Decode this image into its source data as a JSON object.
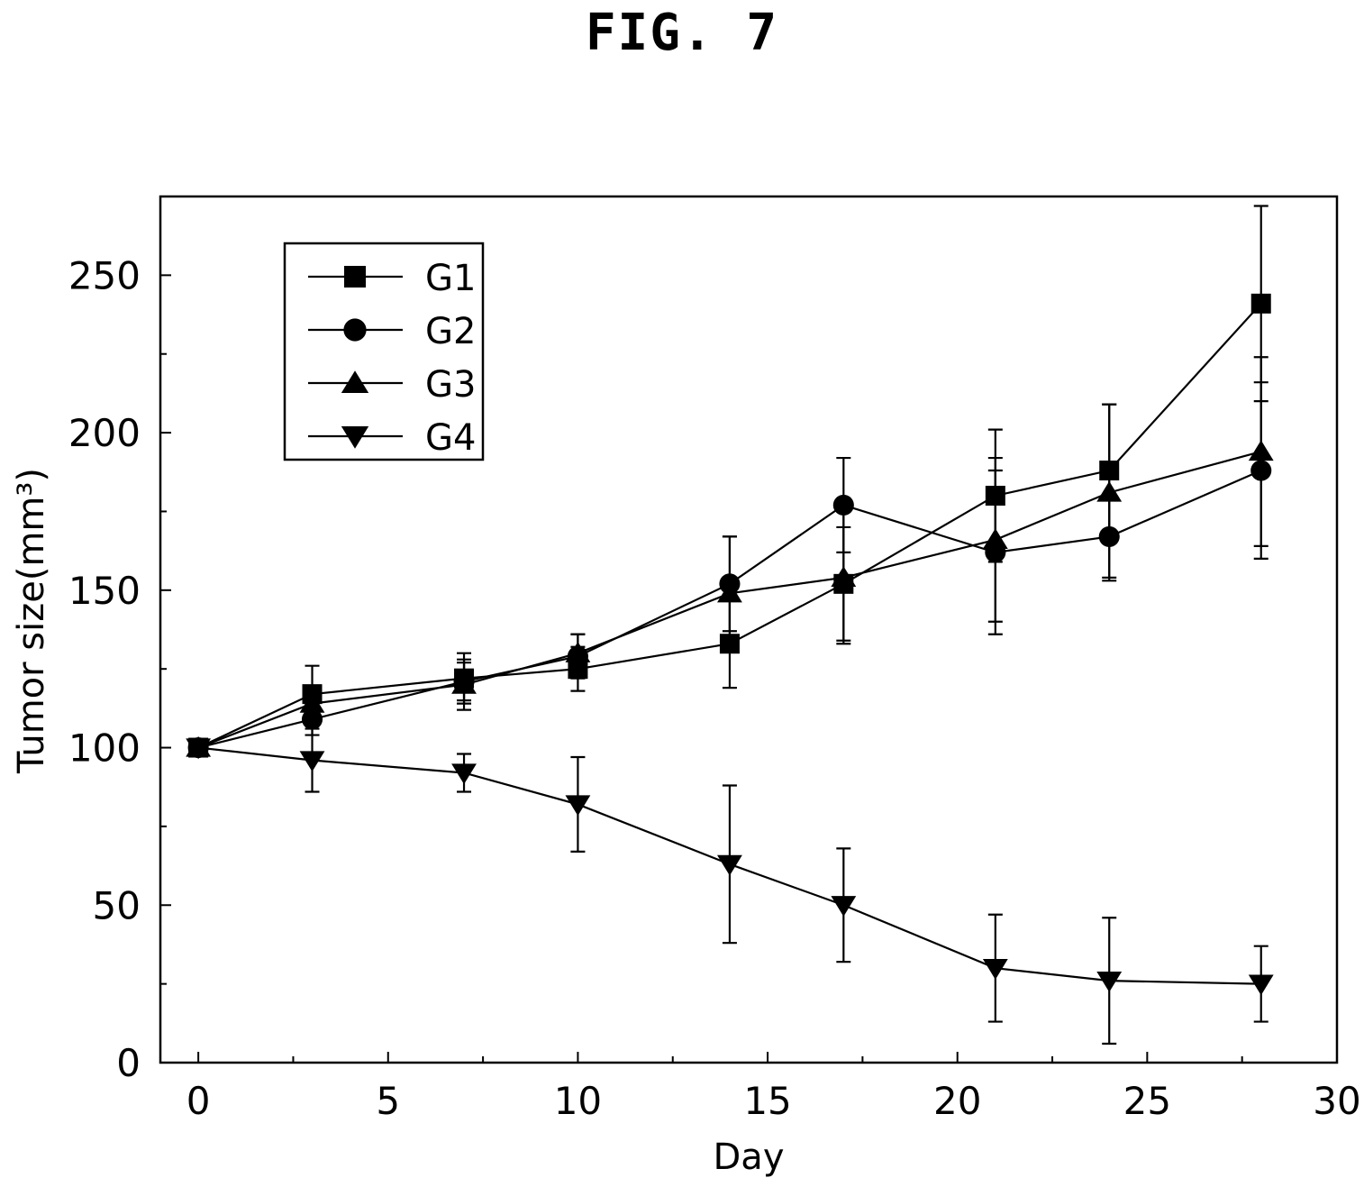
{
  "figure_label": "FIG. 7",
  "chart_data": {
    "type": "line",
    "title": "",
    "xlabel": "Day",
    "ylabel": "Tumor size(mm³)",
    "xlim": [
      -1,
      30
    ],
    "ylim": [
      0,
      275
    ],
    "xticks": [
      0,
      5,
      10,
      15,
      20,
      25,
      30
    ],
    "yticks": [
      0,
      50,
      100,
      150,
      200,
      250
    ],
    "x_minor_ticks": [
      2.5,
      7.5,
      12.5,
      17.5,
      22.5,
      27.5
    ],
    "y_minor_ticks": [
      25,
      75,
      125,
      175,
      225
    ],
    "grid": false,
    "legend_position": "top-left",
    "error_bars": true,
    "x": [
      0,
      3,
      7,
      10,
      14,
      17,
      21,
      24,
      28
    ],
    "series": [
      {
        "name": "G1",
        "marker": "square",
        "values": [
          100,
          117,
          122,
          125,
          133,
          152,
          180,
          188,
          241
        ],
        "errors": [
          0,
          9,
          8,
          7,
          14,
          18,
          21,
          21,
          31
        ]
      },
      {
        "name": "G2",
        "marker": "circle",
        "values": [
          100,
          109,
          121,
          129,
          152,
          177,
          162,
          167,
          188
        ],
        "errors": [
          0,
          5,
          6,
          7,
          15,
          15,
          26,
          13,
          28
        ]
      },
      {
        "name": "G3",
        "marker": "triangle-up",
        "values": [
          100,
          114,
          120,
          130,
          149,
          154,
          166,
          181,
          194
        ],
        "errors": [
          0,
          5,
          8,
          6,
          18,
          21,
          26,
          28,
          30
        ]
      },
      {
        "name": "G4",
        "marker": "triangle-down",
        "values": [
          100,
          96,
          92,
          82,
          63,
          50,
          30,
          26,
          25
        ],
        "errors": [
          0,
          10,
          6,
          15,
          25,
          18,
          17,
          20,
          12
        ]
      }
    ]
  }
}
